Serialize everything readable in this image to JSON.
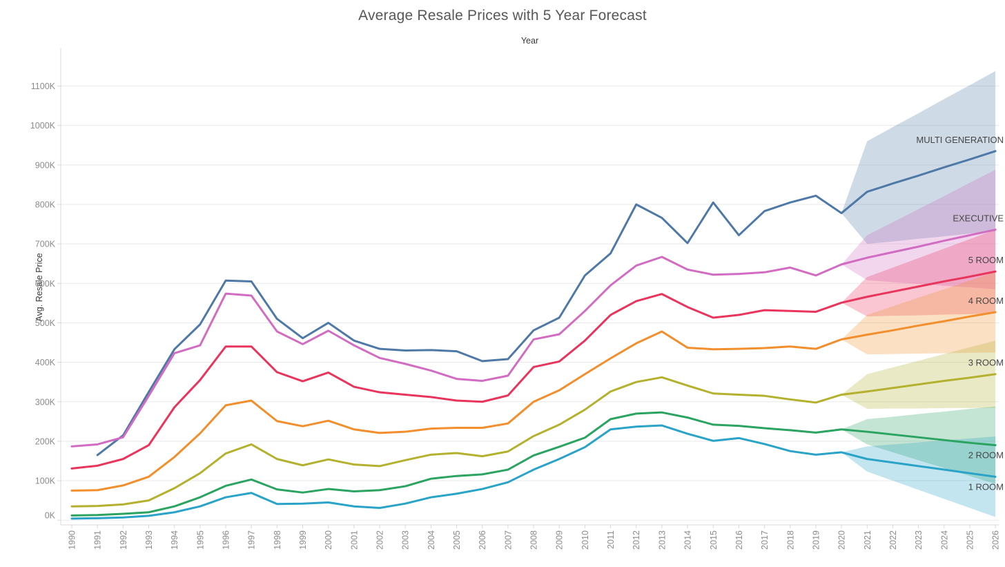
{
  "chart_data": {
    "type": "line",
    "title": "Average Resale Prices with 5 Year Forecast",
    "xlabel": "Year",
    "ylabel": "Avg. Resale Price",
    "legend": "end-of-line-labels",
    "grid": "horizontal",
    "x": [
      1990,
      1991,
      1992,
      1993,
      1994,
      1995,
      1996,
      1997,
      1998,
      1999,
      2000,
      2001,
      2002,
      2003,
      2004,
      2005,
      2006,
      2007,
      2008,
      2009,
      2010,
      2011,
      2012,
      2013,
      2014,
      2015,
      2016,
      2017,
      2018,
      2019,
      2020,
      2021,
      2022,
      2023,
      2024,
      2025,
      2026
    ],
    "y_ticks_k": [
      0,
      100,
      200,
      300,
      400,
      500,
      600,
      700,
      800,
      900,
      1000,
      1100
    ],
    "y_tick_suffix": "K",
    "ylim_k": [
      0,
      1195
    ],
    "forecast_start_year": 2021,
    "series": [
      {
        "name": "MULTI GENERATION",
        "color": "#4E79A7",
        "label_side": "above",
        "values": [
          null,
          165,
          215,
          325,
          433,
          496,
          607,
          605,
          510,
          461,
          500,
          455,
          434,
          430,
          431,
          428,
          403,
          408,
          481,
          513,
          620,
          676,
          800,
          766,
          702,
          805,
          722,
          783,
          805,
          822,
          778,
          832,
          853,
          873,
          894,
          914,
          935
        ],
        "forecast_band": {
          "x": [
            2020,
            2021,
            2022,
            2023,
            2024,
            2025,
            2026
          ],
          "upper": [
            778,
            960,
            996,
            1031,
            1067,
            1102,
            1138
          ],
          "lower": [
            778,
            700,
            706,
            713,
            719,
            726,
            732
          ]
        }
      },
      {
        "name": "EXECUTIVE",
        "color": "#D16CC2",
        "label_side": "above",
        "values": [
          187,
          192,
          210,
          315,
          423,
          443,
          574,
          569,
          478,
          446,
          480,
          443,
          411,
          396,
          379,
          358,
          353,
          366,
          458,
          471,
          530,
          595,
          645,
          667,
          635,
          622,
          624,
          628,
          640,
          620,
          648,
          665,
          679,
          693,
          708,
          722,
          736
        ],
        "forecast_band": {
          "x": [
            2020,
            2021,
            2022,
            2023,
            2024,
            2025,
            2026
          ],
          "upper": [
            648,
            722,
            755,
            788,
            821,
            855,
            888
          ],
          "lower": [
            648,
            608,
            603,
            599,
            594,
            590,
            585
          ]
        }
      },
      {
        "name": "5 ROOM",
        "color": "#E9345C",
        "label_side": "above",
        "values": [
          131,
          138,
          155,
          190,
          286,
          355,
          440,
          440,
          375,
          352,
          374,
          338,
          324,
          318,
          312,
          303,
          300,
          316,
          388,
          402,
          455,
          520,
          555,
          573,
          540,
          513,
          520,
          532,
          530,
          528,
          551,
          566,
          579,
          592,
          605,
          617,
          630
        ],
        "forecast_band": {
          "x": [
            2020,
            2021,
            2022,
            2023,
            2024,
            2025,
            2026
          ],
          "upper": [
            551,
            616,
            640,
            664,
            688,
            712,
            736
          ],
          "lower": [
            551,
            516,
            518,
            519,
            521,
            522,
            524
          ]
        }
      },
      {
        "name": "4 ROOM",
        "color": "#F28E2B",
        "label_side": "above",
        "values": [
          75,
          76,
          88,
          110,
          160,
          220,
          291,
          303,
          251,
          238,
          252,
          230,
          221,
          224,
          232,
          234,
          234,
          245,
          300,
          329,
          370,
          410,
          448,
          478,
          437,
          433,
          434,
          436,
          440,
          434,
          458,
          470,
          481,
          493,
          504,
          516,
          527
        ],
        "forecast_band": {
          "x": [
            2020,
            2021,
            2022,
            2023,
            2024,
            2025,
            2026
          ],
          "upper": [
            458,
            520,
            542,
            564,
            585,
            607,
            629
          ],
          "lower": [
            458,
            420,
            421,
            422,
            423,
            424,
            425
          ]
        }
      },
      {
        "name": "3 ROOM",
        "color": "#B3B12E",
        "label_side": "above",
        "values": [
          35,
          36,
          40,
          50,
          81,
          119,
          169,
          192,
          155,
          139,
          154,
          141,
          137,
          152,
          166,
          170,
          162,
          174,
          213,
          242,
          280,
          326,
          350,
          362,
          341,
          321,
          318,
          315,
          306,
          298,
          318,
          326,
          335,
          344,
          353,
          361,
          370
        ],
        "forecast_band": {
          "x": [
            2020,
            2021,
            2022,
            2023,
            2024,
            2025,
            2026
          ],
          "upper": [
            318,
            370,
            387,
            404,
            421,
            438,
            455
          ],
          "lower": [
            318,
            282,
            283,
            283,
            284,
            284,
            285
          ]
        }
      },
      {
        "name": "2 ROOM",
        "color": "#2BA361",
        "label_side": "below",
        "values": [
          12,
          13,
          16,
          20,
          35,
          58,
          87,
          103,
          78,
          70,
          79,
          73,
          76,
          86,
          105,
          112,
          116,
          128,
          164,
          186,
          209,
          256,
          270,
          273,
          260,
          242,
          239,
          233,
          228,
          222,
          230,
          224,
          217,
          210,
          203,
          196,
          190
        ],
        "forecast_band": {
          "x": [
            2020,
            2021,
            2022,
            2023,
            2024,
            2025,
            2026
          ],
          "upper": [
            230,
            256,
            262,
            269,
            275,
            282,
            288
          ],
          "lower": [
            230,
            192,
            172,
            152,
            132,
            112,
            92
          ]
        }
      },
      {
        "name": "1 ROOM",
        "color": "#29A3C7",
        "label_side": "below",
        "values": [
          4,
          5,
          7,
          11,
          20,
          35,
          58,
          69,
          41,
          42,
          45,
          35,
          31,
          42,
          58,
          67,
          79,
          96,
          128,
          155,
          185,
          230,
          237,
          240,
          219,
          201,
          208,
          193,
          175,
          166,
          172,
          155,
          146,
          137,
          128,
          119,
          110
        ],
        "forecast_band": {
          "x": [
            2020,
            2021,
            2022,
            2023,
            2024,
            2025,
            2026
          ],
          "upper": [
            172,
            187,
            192,
            197,
            202,
            207,
            212
          ],
          "lower": [
            172,
            123,
            100,
            77,
            54,
            31,
            8
          ]
        }
      }
    ]
  }
}
